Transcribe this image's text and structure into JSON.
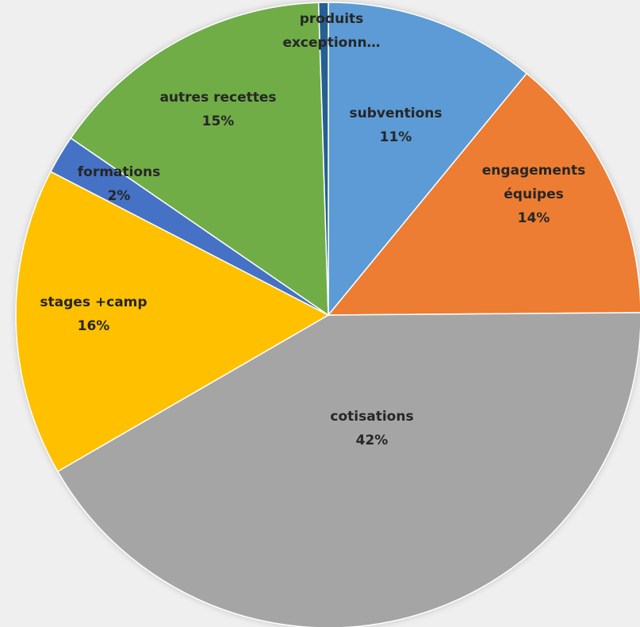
{
  "chart_data": {
    "type": "pie",
    "start_angle_deg": 0,
    "direction": "clockwise",
    "slices": [
      {
        "label": "subventions",
        "percent_label": "11%",
        "value": 11,
        "color": "#5b9bd5",
        "label_lines": [
          "subventions",
          "11%"
        ]
      },
      {
        "label": "engagements équipes",
        "percent_label": "14%",
        "value": 14,
        "color": "#ed7d31",
        "label_lines": [
          "engagements",
          "équipes",
          "14%"
        ]
      },
      {
        "label": "cotisations",
        "percent_label": "42%",
        "value": 42,
        "color": "#a5a5a5",
        "label_lines": [
          "cotisations",
          "42%"
        ]
      },
      {
        "label": "stages +camp",
        "percent_label": "16%",
        "value": 16,
        "color": "#ffc000",
        "label_lines": [
          "stages +camp",
          "16%"
        ]
      },
      {
        "label": "formations",
        "percent_label": "2%",
        "value": 2,
        "color": "#4472c4",
        "label_lines": [
          "formations",
          "2%"
        ]
      },
      {
        "label": "autres recettes",
        "percent_label": "15%",
        "value": 15,
        "color": "#70ad47",
        "label_lines": [
          "autres recettes",
          "15%"
        ]
      },
      {
        "label": "produits exceptionn…",
        "percent_label": "",
        "value": 0.5,
        "color": "#255e91",
        "label_lines": [
          "produits",
          "exceptionn…"
        ]
      }
    ]
  }
}
